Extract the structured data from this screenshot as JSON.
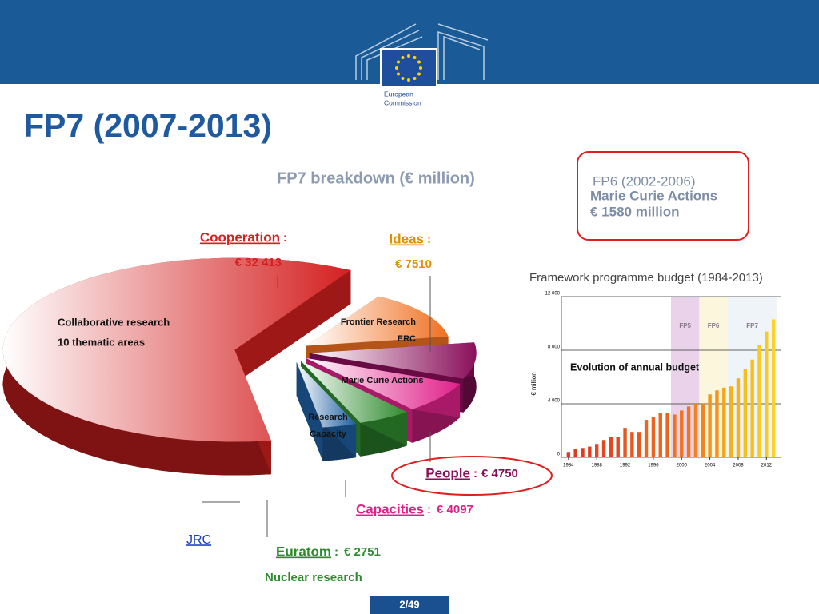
{
  "header": {
    "title": "FP7 (2007-2013)",
    "logo": [
      "European",
      "Commission"
    ]
  },
  "callout": [
    "FP6 (2002-2006)",
    "Marie Curie Actions",
    "€ 1580 million"
  ],
  "footer": {
    "page": "2/49"
  },
  "chart_data": [
    {
      "type": "pie",
      "title": "FP7 breakdown (€ million)",
      "categories": [
        "Cooperation",
        "Ideas",
        "People",
        "Capacities",
        "Euratom",
        "JRC"
      ],
      "separator": ":",
      "values": [
        32413,
        7510,
        4750,
        4097,
        2751,
        1751
      ],
      "value_labels": [
        "€ 32 413",
        "€ 7510",
        "€ 4750",
        "€ 4097",
        "€ 2751",
        null
      ],
      "colors": [
        "#d42020",
        "#f07020",
        "#8a0f5a",
        "#e0218a",
        "#2e8b2e",
        "#1f5fa0"
      ],
      "slice_labels": [
        [
          "Collaborative research",
          "10 thematic areas"
        ],
        [
          "Frontier Research",
          "ERC"
        ],
        [
          "Marie Curie Actions"
        ],
        [
          "Research",
          "Capacity"
        ],
        [
          "Nuclear research"
        ],
        []
      ]
    },
    {
      "type": "bar",
      "title": "Framework programme budget (1984-2013)",
      "y_label": "€ million",
      "annotation": "Evolution of annual budget",
      "x": [
        1984,
        1985,
        1986,
        1987,
        1988,
        1989,
        1990,
        1991,
        1992,
        1993,
        1994,
        1995,
        1996,
        1997,
        1998,
        1999,
        2000,
        2001,
        2002,
        2003,
        2004,
        2005,
        2006,
        2007,
        2008,
        2009,
        2010,
        2011,
        2012,
        2013
      ],
      "values": [
        400,
        600,
        700,
        800,
        1000,
        1300,
        1500,
        1500,
        2200,
        1900,
        1900,
        2800,
        3000,
        3300,
        3300,
        3200,
        3500,
        3800,
        4000,
        4000,
        4700,
        5000,
        5200,
        5300,
        5900,
        6600,
        7300,
        8400,
        9400,
        10300
      ],
      "colors": [
        "#e03a20",
        "#e03a20",
        "#e03a20",
        "#e03a20",
        "#e4461f",
        "#e4461f",
        "#e4461f",
        "#e4461f",
        "#e8551e",
        "#e8551e",
        "#e8551e",
        "#ec641d",
        "#ec641d",
        "#ec641d",
        "#ec641d",
        "#f0741c",
        "#f0741c",
        "#f0741c",
        "#f3841b",
        "#f3841b",
        "#f5941a",
        "#f5941a",
        "#f5a31a",
        "#f7b21a",
        "#f7b21a",
        "#f8bf1c",
        "#f8bf1c",
        "#f9ca22",
        "#f9ca22",
        "#f9d22a"
      ],
      "bands": [
        {
          "label": "FP5",
          "start": 1998.5,
          "end": 2002.5,
          "color": "#ead3ea"
        },
        {
          "label": "FP6",
          "start": 2002.5,
          "end": 2006.5,
          "color": "#fbf6dc"
        },
        {
          "label": "FP7",
          "start": 2006.5,
          "end": 2013.5,
          "color": "#eef4f8"
        }
      ],
      "xlim": [
        1983,
        2014
      ],
      "ylim": [
        0,
        12000
      ],
      "xticks": [
        1984,
        1988,
        1992,
        1996,
        2000,
        2004,
        2008,
        2012
      ],
      "yticks": [
        0,
        {
          "value": 4000,
          "label": "4 000"
        },
        {
          "value": 8000,
          "label": "8 000"
        },
        {
          "value": 12000,
          "label": "12 000"
        }
      ],
      "grid": true
    }
  ]
}
